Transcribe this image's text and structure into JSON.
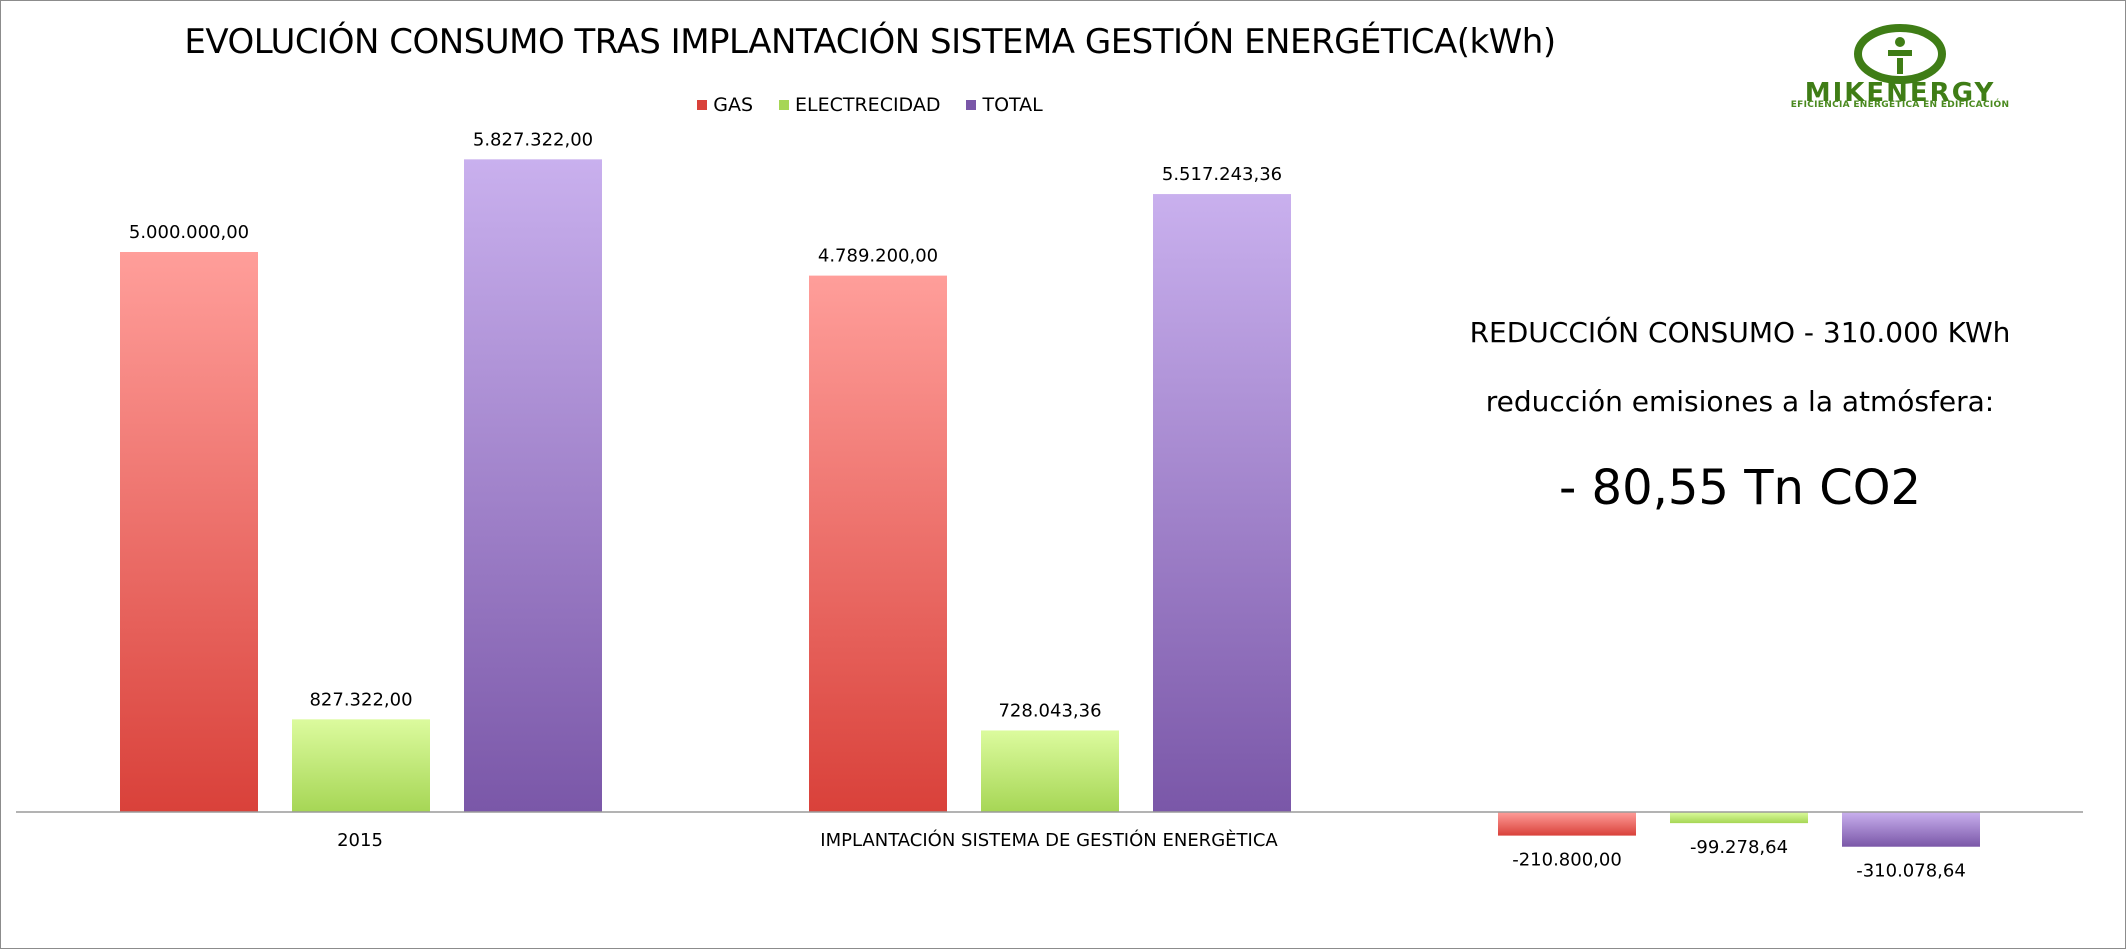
{
  "chart_data": {
    "type": "bar",
    "title": "EVOLUCIÓN CONSUMO TRAS IMPLANTACIÓN SISTEMA GESTIÓN ENERGÉTICA(kWh)",
    "categories": [
      "2015",
      "IMPLANTACIÓN SISTEMA DE GESTIÓN  ENERGÈTICA",
      ""
    ],
    "series": [
      {
        "name": "GAS",
        "color": "#d9413a",
        "color_light": "#ff9e9a",
        "values": [
          5000000.0,
          4789200.0,
          -210800.0
        ],
        "labels": [
          "5.000.000,00",
          "4.789.200,00",
          "-210.800,00"
        ]
      },
      {
        "name": "ELECTRECIDAD",
        "color": "#a6d655",
        "color_light": "#dcfb9e",
        "values": [
          827322.0,
          728043.36,
          -99278.64
        ],
        "labels": [
          "827.322,00",
          "728.043,36",
          "-99.278,64"
        ]
      },
      {
        "name": "TOTAL",
        "color": "#7a57a8",
        "color_light": "#c9b0ee",
        "values": [
          5827322.0,
          5517243.36,
          -310078.64
        ],
        "labels": [
          "5.827.322,00",
          "5.517.243,36",
          "-310.078,64"
        ]
      }
    ],
    "legend_position": "top",
    "grid": false
  },
  "annotations": {
    "reduction": "REDUCCIÓN CONSUMO - 310.000 KWh",
    "emissions_label": "reducción emisiones a la atmósfera:",
    "emissions_value": "- 80,55 Tn CO2"
  },
  "logo": {
    "name": "MIKENERGY",
    "tagline": "EFICIENCIA ENERGÉTICA EN EDIFICACIÓN",
    "color": "#3f7d16"
  }
}
